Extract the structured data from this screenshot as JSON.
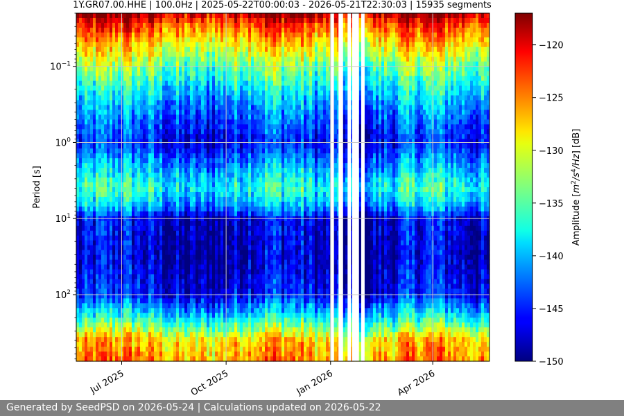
{
  "chart_data": {
    "type": "heatmap",
    "title": "1Y.GR07.00.HHE | 100.0Hz | 2025-05-22T00:00:03 - 2026-05-21T22:30:03 | 15935 segments",
    "xlabel": "",
    "ylabel": "Period [s]",
    "x_range": [
      "2025-05-22",
      "2026-05-21"
    ],
    "x_tick_labels": [
      {
        "date": "2025-07-01",
        "label": "Jul 2025"
      },
      {
        "date": "2025-10-01",
        "label": "Oct 2025"
      },
      {
        "date": "2026-01-01",
        "label": "Jan 2026"
      },
      {
        "date": "2026-04-01",
        "label": "Apr 2026"
      }
    ],
    "y_scale": "log",
    "y_inverted": true,
    "y_range": [
      0.02,
      750
    ],
    "y_ticks": [
      0.1,
      1,
      10,
      100
    ],
    "y_tick_labels": [
      {
        "base": "10",
        "exp": "−1"
      },
      {
        "base": "10",
        "exp": "0"
      },
      {
        "base": "10",
        "exp": "1"
      },
      {
        "base": "10",
        "exp": "2"
      }
    ],
    "grid": true,
    "colormap": "jet",
    "colorbar": {
      "label": "Amplitude [m²/s⁴/Hz] [dB]",
      "label_parts": {
        "pre": "Amplitude [",
        "m": "m",
        "e1": "2",
        "s": "/s",
        "e2": "4",
        "hz": "/Hz",
        "post": "] [dB]"
      },
      "range": [
        -150,
        -117
      ],
      "ticks": [
        -150,
        -145,
        -140,
        -135,
        -130,
        -125,
        -120
      ],
      "tick_labels": [
        "−150",
        "−145",
        "−140",
        "−135",
        "−130",
        "−125",
        "−120"
      ]
    },
    "data_gaps": [
      {
        "start": "2026-01-01",
        "end": "2026-01-04"
      },
      {
        "start": "2026-01-08",
        "end": "2026-01-12"
      },
      {
        "start": "2026-01-16",
        "end": "2026-01-19"
      },
      {
        "start": "2026-01-20",
        "end": "2026-01-26"
      },
      {
        "start": "2026-01-28",
        "end": "2026-01-31"
      }
    ],
    "amplitude_profile": [
      {
        "period": 0.02,
        "db": -119
      },
      {
        "period": 0.03,
        "db": -124
      },
      {
        "period": 0.06,
        "db": -130
      },
      {
        "period": 0.1,
        "db": -134
      },
      {
        "period": 0.3,
        "db": -141
      },
      {
        "period": 1,
        "db": -146
      },
      {
        "period": 2,
        "db": -141
      },
      {
        "period": 4,
        "db": -137
      },
      {
        "period": 7,
        "db": -141
      },
      {
        "period": 10,
        "db": -147
      },
      {
        "period": 30,
        "db": -148
      },
      {
        "period": 100,
        "db": -146
      },
      {
        "period": 200,
        "db": -138
      },
      {
        "period": 400,
        "db": -128
      },
      {
        "period": 750,
        "db": -126
      }
    ]
  },
  "footer": {
    "text": "Generated by SeedPSD on 2026-05-24 | Calculations updated on 2026-05-22"
  },
  "colors": {
    "footer_bg": "#808080",
    "footer_text": "#ffffff",
    "grid": "#c8c8c8",
    "gap": "#ffffff"
  }
}
